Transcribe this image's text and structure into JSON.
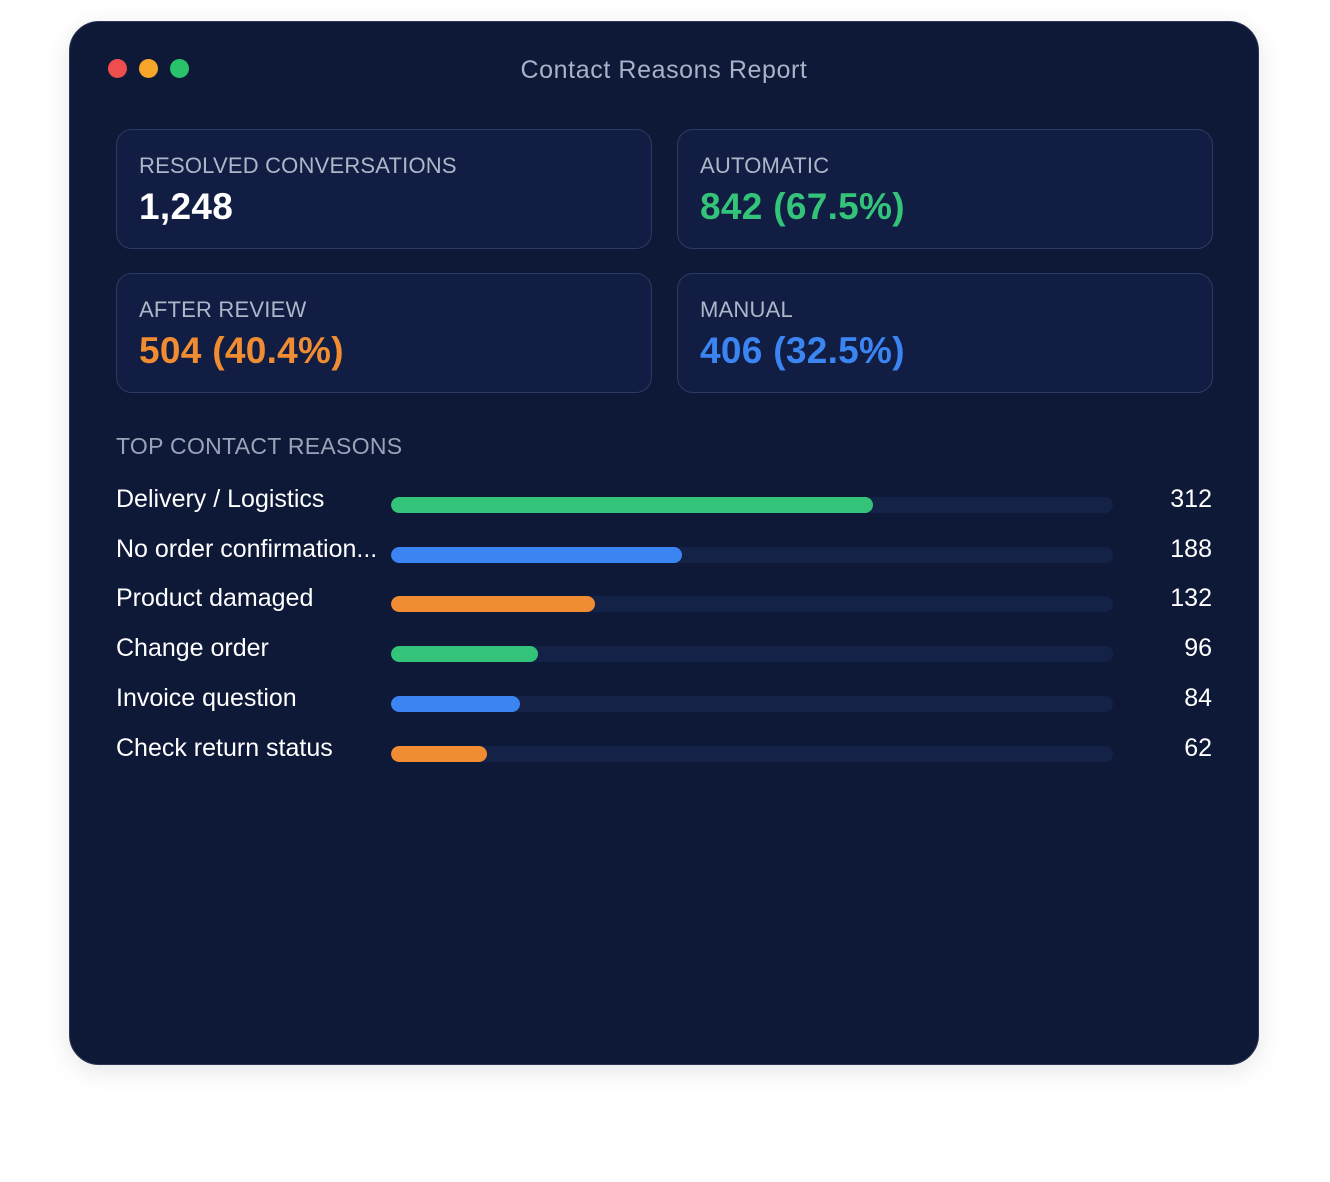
{
  "window": {
    "title": "Contact Reasons Report",
    "controls": [
      "close",
      "minimize",
      "maximize"
    ],
    "control_colors": [
      "#f04e4e",
      "#f6a62a",
      "#27c26a"
    ]
  },
  "cards": [
    {
      "label": "RESOLVED CONVERSATIONS",
      "value": "1,248",
      "color": "#ffffff"
    },
    {
      "label": "AUTOMATIC",
      "value": "842 (67.5%)",
      "color": "#33c47a"
    },
    {
      "label": "AFTER REVIEW",
      "value": "504 (40.4%)",
      "color": "#f08c32"
    },
    {
      "label": "MANUAL",
      "value": "406 (32.5%)",
      "color": "#3b85f3"
    }
  ],
  "top_reasons": {
    "title": "TOP CONTACT REASONS",
    "items": [
      {
        "label": "Delivery / Logistics",
        "value": "312",
        "fill": 0.667,
        "color": "#33c47a"
      },
      {
        "label": "No order confirmation...",
        "value": "188",
        "fill": 0.403,
        "color": "#3b85f3"
      },
      {
        "label": "Product damaged",
        "value": "132",
        "fill": 0.283,
        "color": "#f08c32"
      },
      {
        "label": "Change order",
        "value": "96",
        "fill": 0.204,
        "color": "#33c47a"
      },
      {
        "label": "Invoice question",
        "value": "84",
        "fill": 0.178,
        "color": "#3b85f3"
      },
      {
        "label": "Check return status",
        "value": "62",
        "fill": 0.133,
        "color": "#f08c32"
      }
    ]
  }
}
